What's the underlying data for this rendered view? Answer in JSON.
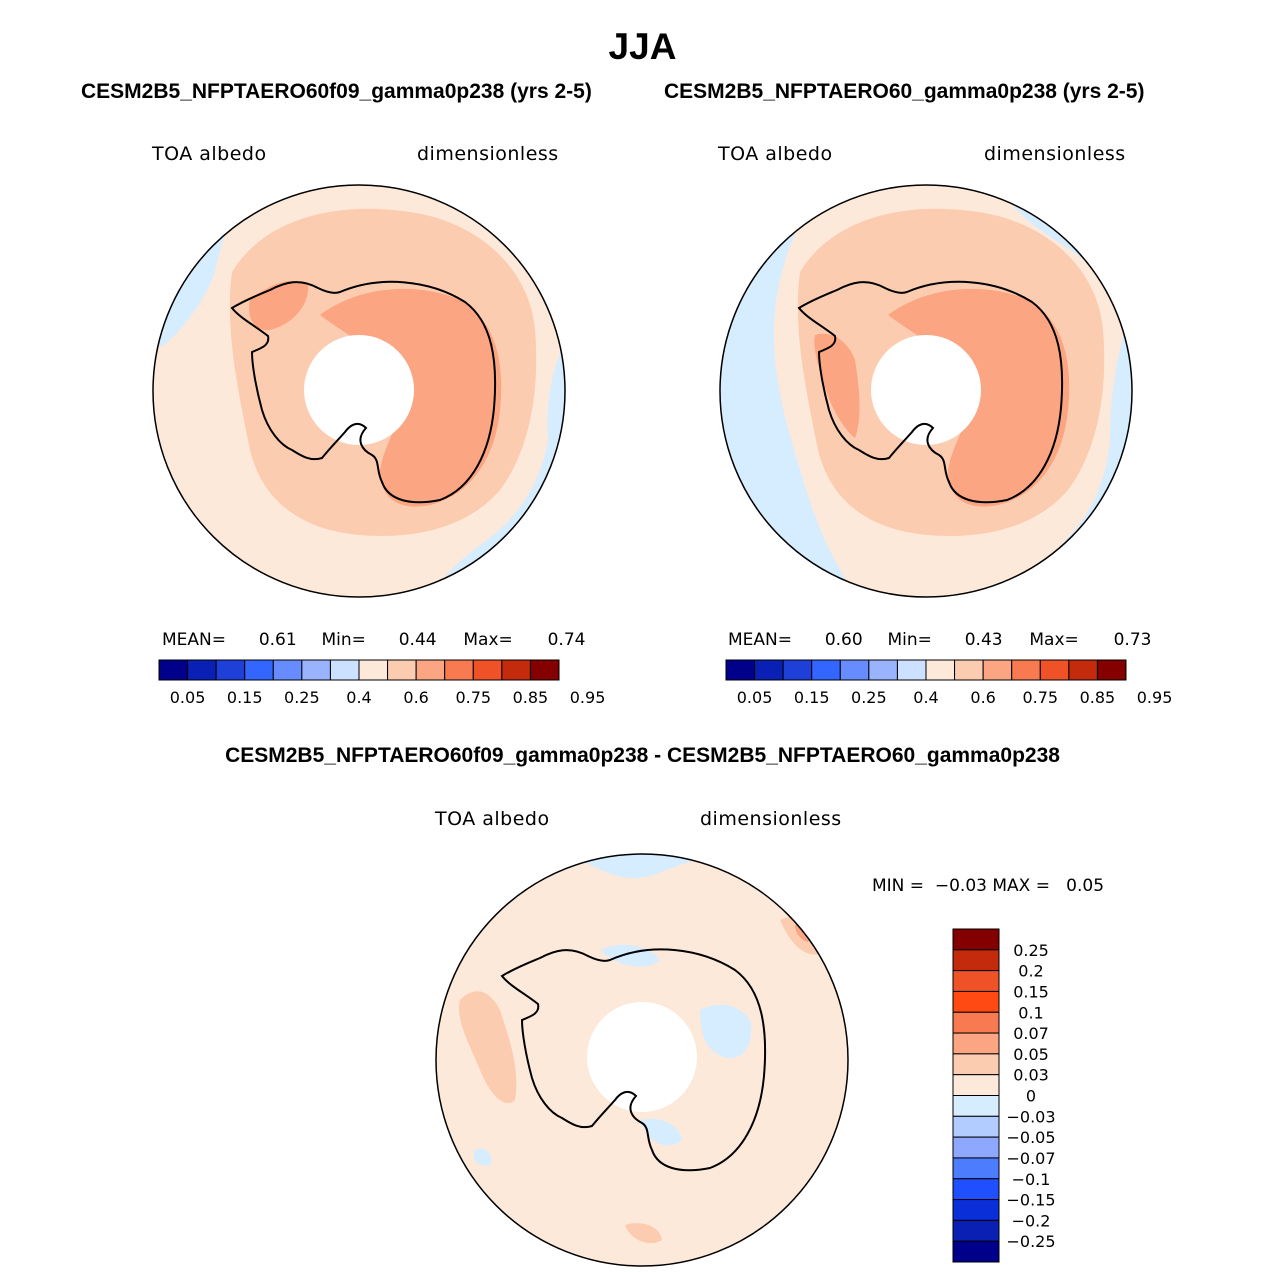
{
  "season_title": "JJA",
  "panel_left": {
    "case_title": "CESM2B5_NFPTAERO60f09_gamma0p238 (yrs 2-5)",
    "variable": "TOA albedo",
    "units": "dimensionless",
    "stats": {
      "mean_label": "MEAN=",
      "mean": "0.61",
      "min_label": "Min=",
      "min": "0.44",
      "max_label": "Max=",
      "max": "0.74"
    }
  },
  "panel_right": {
    "case_title": "CESM2B5_NFPTAERO60_gamma0p238 (yrs 2-5)",
    "variable": "TOA albedo",
    "units": "dimensionless",
    "stats": {
      "mean_label": "MEAN=",
      "mean": "0.60",
      "min_label": "Min=",
      "min": "0.43",
      "max_label": "Max=",
      "max": "0.73"
    }
  },
  "panel_diff": {
    "title": "CESM2B5_NFPTAERO60f09_gamma0p238 - CESM2B5_NFPTAERO60_gamma0p238",
    "variable": "TOA albedo",
    "units": "dimensionless",
    "stats_text": "MIN =  −0.03 MAX =   0.05"
  },
  "chart_data": [
    {
      "type": "map",
      "projection": "south-polar-stereographic",
      "title": "CESM2B5_NFPTAERO60f09_gamma0p238 (yrs 2-5)",
      "variable": "TOA albedo",
      "units": "dimensionless",
      "mean": 0.61,
      "min": 0.44,
      "max": 0.74,
      "colorbar": {
        "orientation": "horizontal",
        "colors": [
          "#00008b",
          "#0a1fb4",
          "#1f3fd9",
          "#3366ff",
          "#668cff",
          "#99b3ff",
          "#cce0ff",
          "#fde9da",
          "#fcccb0",
          "#fba582",
          "#f77a50",
          "#ef5226",
          "#c42a0c",
          "#840000"
        ],
        "tick_labels": [
          "0.05",
          "0.15",
          "0.25",
          "0.4",
          "0.6",
          "0.75",
          "0.85",
          "0.95"
        ]
      }
    },
    {
      "type": "map",
      "projection": "south-polar-stereographic",
      "title": "CESM2B5_NFPTAERO60_gamma0p238 (yrs 2-5)",
      "variable": "TOA albedo",
      "units": "dimensionless",
      "mean": 0.6,
      "min": 0.43,
      "max": 0.73,
      "colorbar": {
        "orientation": "horizontal",
        "colors": [
          "#00008b",
          "#0a1fb4",
          "#1f3fd9",
          "#3366ff",
          "#668cff",
          "#99b3ff",
          "#cce0ff",
          "#fde9da",
          "#fcccb0",
          "#fba582",
          "#f77a50",
          "#ef5226",
          "#c42a0c",
          "#840000"
        ],
        "tick_labels": [
          "0.05",
          "0.15",
          "0.25",
          "0.4",
          "0.6",
          "0.75",
          "0.85",
          "0.95"
        ]
      }
    },
    {
      "type": "map",
      "projection": "south-polar-stereographic",
      "title": "CESM2B5_NFPTAERO60f09_gamma0p238 - CESM2B5_NFPTAERO60_gamma0p238",
      "variable": "TOA albedo",
      "units": "dimensionless",
      "min": -0.03,
      "max": 0.05,
      "colorbar": {
        "orientation": "vertical",
        "colors_top_to_bottom": [
          "#840000",
          "#c42a0c",
          "#ef5226",
          "#ff4a14",
          "#f77a50",
          "#fba582",
          "#fcccb0",
          "#fde9da",
          "#d6ecff",
          "#b3ccff",
          "#8fa8ff",
          "#4d7dff",
          "#1f4fff",
          "#0a2fd9",
          "#0a1fb4",
          "#00008b"
        ],
        "tick_labels_top_to_bottom": [
          "0.25",
          "0.2",
          "0.15",
          "0.1",
          "0.07",
          "0.05",
          "0.03",
          "0",
          "−0.03",
          "−0.05",
          "−0.07",
          "−0.1",
          "−0.15",
          "−0.2",
          "−0.25"
        ]
      }
    }
  ]
}
